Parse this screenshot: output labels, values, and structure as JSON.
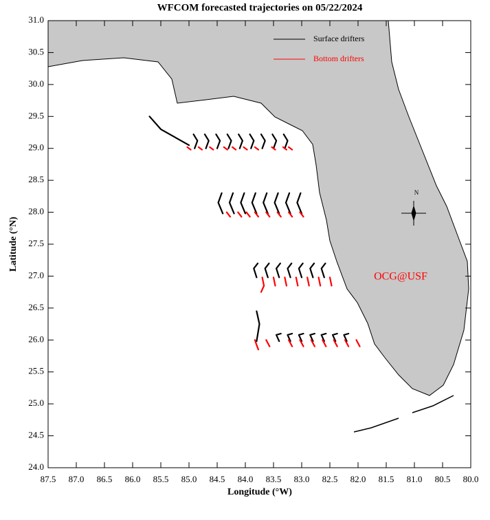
{
  "chart_data": {
    "type": "map",
    "title": "WFCOM forecasted trajectories on 05/22/2024",
    "x_label": "Longitude (°W)",
    "y_label": "Latitude (°N)",
    "xlim": [
      87.5,
      80.0
    ],
    "ylim": [
      24.0,
      31.0
    ],
    "xticks": [
      87.5,
      {
        "value": 87.0,
        "label": "87.0"
      },
      86.5,
      {
        "value": 86.0,
        "label": "86.0"
      },
      85.5,
      {
        "value": 85.0,
        "label": "85.0"
      },
      84.5,
      {
        "value": 84.0,
        "label": "84.0"
      },
      83.5,
      {
        "value": 83.0,
        "label": "83.0"
      },
      82.5,
      {
        "value": 82.0,
        "label": "82.0"
      },
      81.5,
      {
        "value": 81.0,
        "label": "81.0"
      },
      80.5,
      {
        "value": 80.0,
        "label": "80.0"
      }
    ],
    "yticks": [
      {
        "value": 24.0,
        "label": "24.0"
      },
      24.5,
      {
        "value": 25.0,
        "label": "25.0"
      },
      25.5,
      {
        "value": 26.0,
        "label": "26.0"
      },
      26.5,
      {
        "value": 27.0,
        "label": "27.0"
      },
      27.5,
      {
        "value": 28.0,
        "label": "28.0"
      },
      28.5,
      {
        "value": 29.0,
        "label": "29.0"
      },
      29.5,
      {
        "value": 30.0,
        "label": "30.0"
      },
      30.5,
      {
        "value": 31.0,
        "label": "31.0"
      }
    ],
    "grid": false,
    "legend_position": "upper right",
    "annotation": "OCG@USF",
    "compass_label": "N",
    "series": [
      {
        "name": "Surface drifters",
        "color": "#000000",
        "x": [
          85.7,
          85.5,
          85.0,
          null,
          84.9,
          84.85,
          84.92,
          null,
          84.7,
          84.65,
          84.72,
          null,
          84.5,
          84.45,
          84.52,
          null,
          84.3,
          84.25,
          84.32,
          null,
          84.1,
          84.05,
          84.12,
          null,
          83.9,
          83.85,
          83.92,
          null,
          83.7,
          83.65,
          83.72,
          null,
          83.5,
          83.45,
          83.52,
          null,
          83.3,
          83.25,
          83.32,
          null,
          84.4,
          84.48,
          84.42,
          null,
          84.2,
          84.28,
          84.22,
          null,
          84.0,
          84.08,
          84.02,
          null,
          83.8,
          83.88,
          83.82,
          null,
          83.6,
          83.68,
          83.62,
          null,
          83.4,
          83.48,
          83.42,
          null,
          83.2,
          83.28,
          83.22,
          null,
          83.0,
          83.08,
          83.02,
          null,
          83.8,
          83.85,
          83.78,
          null,
          83.6,
          83.65,
          83.58,
          null,
          83.4,
          83.45,
          83.38,
          null,
          83.2,
          83.25,
          83.18,
          null,
          83.0,
          83.05,
          82.98,
          null,
          82.8,
          82.85,
          82.78,
          null,
          82.6,
          82.65,
          82.58,
          null,
          83.8,
          83.75,
          83.8,
          null,
          83.4,
          83.45,
          83.37,
          null,
          83.2,
          83.25,
          83.17,
          null,
          83.0,
          83.05,
          82.97,
          null,
          82.8,
          82.85,
          82.77,
          null,
          82.6,
          82.65,
          82.57,
          null,
          82.4,
          82.45,
          82.37,
          null,
          82.2,
          82.25,
          82.17
        ],
        "values": [
          29.5,
          29.3,
          29.05,
          null,
          29.0,
          29.12,
          29.22,
          null,
          29.0,
          29.12,
          29.22,
          null,
          29.0,
          29.12,
          29.22,
          null,
          29.0,
          29.12,
          29.22,
          null,
          29.0,
          29.12,
          29.22,
          null,
          29.0,
          29.12,
          29.22,
          null,
          29.0,
          29.12,
          29.22,
          null,
          29.0,
          29.12,
          29.22,
          null,
          29.0,
          29.12,
          29.22,
          null,
          27.98,
          28.15,
          28.3,
          null,
          27.98,
          28.15,
          28.3,
          null,
          27.98,
          28.15,
          28.3,
          null,
          27.98,
          28.15,
          28.3,
          null,
          27.98,
          28.15,
          28.3,
          null,
          27.98,
          28.15,
          28.3,
          null,
          27.98,
          28.15,
          28.3,
          null,
          27.98,
          28.15,
          28.3,
          null,
          26.98,
          27.12,
          27.2,
          null,
          26.98,
          27.12,
          27.2,
          null,
          26.98,
          27.12,
          27.2,
          null,
          26.98,
          27.12,
          27.2,
          null,
          26.98,
          27.12,
          27.2,
          null,
          26.98,
          27.12,
          27.2,
          null,
          26.98,
          27.12,
          27.2,
          null,
          25.98,
          26.25,
          26.45,
          null,
          25.98,
          26.08,
          26.1,
          null,
          25.98,
          26.08,
          26.1,
          null,
          25.98,
          26.08,
          26.1,
          null,
          25.98,
          26.08,
          26.1,
          null,
          25.98,
          26.08,
          26.1,
          null,
          25.98,
          26.08,
          26.1,
          null,
          25.98,
          26.08,
          26.1
        ]
      },
      {
        "name": "Bottom drifters",
        "color": "#ff0000",
        "x": [
          85.03,
          84.97,
          null,
          84.83,
          84.77,
          null,
          84.63,
          84.57,
          null,
          84.38,
          84.32,
          null,
          84.23,
          84.17,
          null,
          84.03,
          83.97,
          null,
          83.83,
          83.77,
          null,
          83.53,
          83.47,
          null,
          83.33,
          83.27,
          null,
          83.23,
          83.17,
          null,
          84.33,
          84.27,
          null,
          84.13,
          84.07,
          null,
          83.98,
          83.92,
          null,
          83.83,
          83.77,
          null,
          83.63,
          83.57,
          null,
          83.43,
          83.37,
          null,
          83.23,
          83.17,
          null,
          83.03,
          82.97,
          null,
          83.7,
          83.67,
          83.72,
          null,
          83.5,
          83.47,
          null,
          83.3,
          83.27,
          null,
          83.1,
          83.07,
          null,
          82.9,
          82.87,
          null,
          82.7,
          82.67,
          null,
          82.5,
          82.47,
          null,
          83.83,
          83.8,
          83.77,
          null,
          83.63,
          83.57,
          null,
          83.23,
          83.17,
          null,
          83.03,
          82.97,
          null,
          82.83,
          82.77,
          null,
          82.63,
          82.57,
          null,
          82.43,
          82.37,
          null,
          82.23,
          82.17,
          null,
          82.03,
          81.97
        ],
        "values": [
          29.02,
          28.98,
          null,
          29.02,
          28.98,
          null,
          29.02,
          28.98,
          null,
          29.02,
          28.98,
          null,
          29.02,
          28.98,
          null,
          29.02,
          28.98,
          null,
          29.02,
          28.98,
          null,
          29.02,
          28.98,
          null,
          29.02,
          28.98,
          null,
          29.02,
          28.98,
          null,
          28.0,
          27.93,
          null,
          28.0,
          27.93,
          null,
          28.0,
          27.93,
          null,
          28.0,
          27.93,
          null,
          28.0,
          27.93,
          null,
          28.0,
          27.93,
          null,
          28.0,
          27.93,
          null,
          28.0,
          27.93,
          null,
          26.98,
          26.85,
          26.75,
          null,
          26.98,
          26.85,
          null,
          26.98,
          26.85,
          null,
          26.98,
          26.85,
          null,
          26.98,
          26.85,
          null,
          26.98,
          26.85,
          null,
          26.98,
          26.85,
          null,
          26.0,
          25.92,
          25.85,
          null,
          26.0,
          25.9,
          null,
          26.0,
          25.9,
          null,
          26.0,
          25.9,
          null,
          26.0,
          25.9,
          null,
          26.0,
          25.9,
          null,
          26.0,
          25.9,
          null,
          26.0,
          25.9,
          null,
          26.0,
          25.9
        ]
      }
    ]
  }
}
